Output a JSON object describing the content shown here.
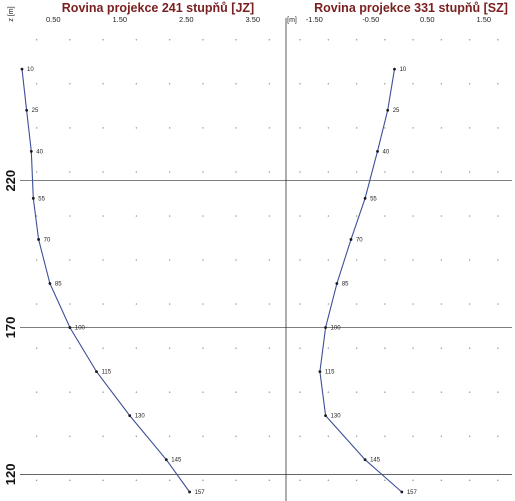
{
  "panels": {
    "left": {
      "title": "Rovina projekce  241 stupňů [JZ]",
      "axis_unit": "",
      "x_ticks": [
        "0.50",
        "1.50",
        "2.50",
        "3.50"
      ]
    },
    "right": {
      "title": "Rovina projekce  331 stupňů [SZ]",
      "axis_unit": "[m]",
      "x_ticks": [
        "-1.50",
        "-0.50",
        "0.50",
        "1.50"
      ]
    }
  },
  "y_axis": {
    "label": "z [m]",
    "ticks": [
      "220",
      "170",
      "120"
    ]
  },
  "chart_data": [
    {
      "type": "line",
      "title": "Rovina projekce  241 stupňů [JZ]",
      "xlabel": "",
      "ylabel": "z [m]",
      "xlim": [
        0.0,
        4.0
      ],
      "x_ticks": [
        0.5,
        1.5,
        2.5,
        3.5
      ],
      "y_ticks": [
        220,
        170,
        120
      ],
      "ylim": [
        114,
        272
      ],
      "grid": true,
      "series": [
        {
          "labels": [
            "10",
            "25",
            "40",
            "55",
            "70",
            "85",
            "100",
            "115",
            "130",
            "145",
            "157"
          ],
          "x": [
            0.03,
            0.1,
            0.17,
            0.2,
            0.28,
            0.45,
            0.75,
            1.15,
            1.65,
            2.2,
            2.55
          ],
          "y": [
            258,
            244,
            230,
            214,
            200,
            185,
            170,
            155,
            140,
            125,
            114
          ]
        }
      ]
    },
    {
      "type": "line",
      "title": "Rovina projekce  331 stupňů [SZ]",
      "xlabel": "[m]",
      "ylabel": "z [m]",
      "xlim": [
        -2.0,
        2.0
      ],
      "x_ticks": [
        -1.5,
        -0.5,
        0.5,
        1.5
      ],
      "y_ticks": [
        220,
        170,
        120
      ],
      "ylim": [
        114,
        272
      ],
      "grid": true,
      "series": [
        {
          "labels": [
            "10",
            "25",
            "40",
            "55",
            "70",
            "85",
            "100",
            "115",
            "130",
            "145",
            "157"
          ],
          "x": [
            -0.08,
            -0.2,
            -0.38,
            -0.6,
            -0.85,
            -1.1,
            -1.3,
            -1.4,
            -1.3,
            -0.6,
            0.05
          ],
          "y": [
            258,
            244,
            230,
            214,
            200,
            185,
            170,
            155,
            140,
            125,
            114
          ]
        }
      ]
    }
  ]
}
